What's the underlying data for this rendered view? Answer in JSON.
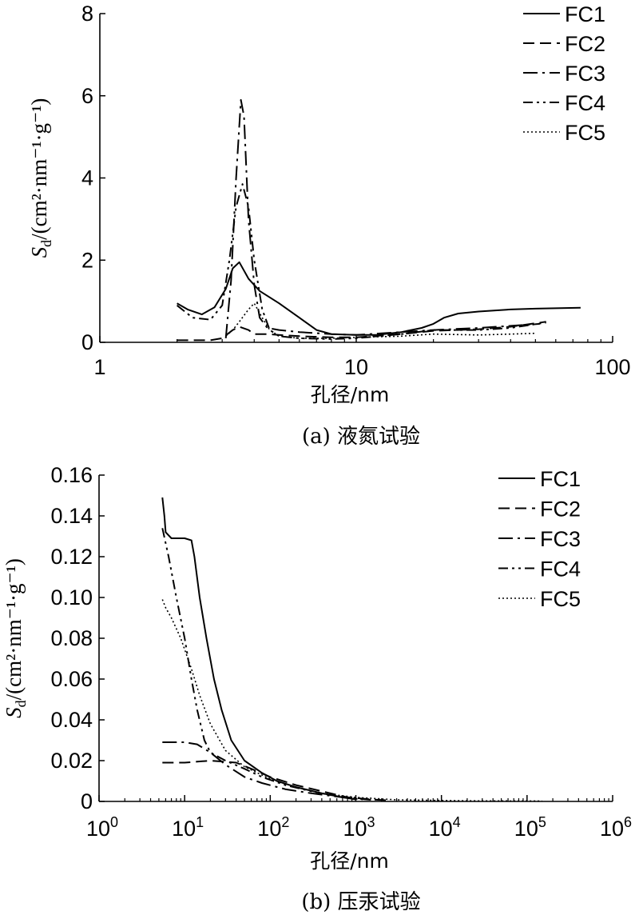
{
  "chart_data": [
    {
      "type": "line",
      "x_scale": "log",
      "xlim": [
        1,
        100
      ],
      "ylim": [
        0,
        8
      ],
      "x_ticks": [
        1,
        10,
        100
      ],
      "x_tick_labels": [
        "1",
        "10",
        "100"
      ],
      "y_ticks": [
        0,
        2,
        4,
        6,
        8
      ],
      "y_tick_labels": [
        "0",
        "2",
        "4",
        "6",
        "8"
      ],
      "ylabel": {
        "base": "S",
        "sub": "d",
        "unit": "/(cm²·nm⁻¹·g⁻¹)"
      },
      "xlabel": "孔径/nm",
      "caption": "(a)  液氮试验",
      "legend_position": "top-right",
      "series": [
        {
          "name": "FC1",
          "style": "solid",
          "points": [
            [
              2.0,
              0.95
            ],
            [
              2.2,
              0.8
            ],
            [
              2.5,
              0.68
            ],
            [
              2.8,
              0.85
            ],
            [
              3.1,
              1.3
            ],
            [
              3.3,
              1.8
            ],
            [
              3.5,
              1.95
            ],
            [
              3.8,
              1.55
            ],
            [
              4.2,
              1.25
            ],
            [
              5.0,
              0.95
            ],
            [
              6.0,
              0.6
            ],
            [
              7.0,
              0.3
            ],
            [
              8.0,
              0.2
            ],
            [
              10.0,
              0.18
            ],
            [
              12.0,
              0.18
            ],
            [
              15.0,
              0.25
            ],
            [
              18.0,
              0.35
            ],
            [
              20.0,
              0.45
            ],
            [
              22.0,
              0.6
            ],
            [
              25.0,
              0.7
            ],
            [
              30.0,
              0.75
            ],
            [
              40.0,
              0.8
            ],
            [
              50.0,
              0.82
            ],
            [
              75.0,
              0.84
            ]
          ]
        },
        {
          "name": "FC2",
          "style": "dashed",
          "points": [
            [
              2.0,
              0.05
            ],
            [
              2.7,
              0.05
            ],
            [
              3.0,
              0.1
            ],
            [
              3.3,
              0.3
            ],
            [
              3.5,
              0.38
            ],
            [
              3.8,
              0.3
            ],
            [
              4.0,
              0.2
            ],
            [
              4.5,
              0.2
            ],
            [
              5.0,
              0.18
            ],
            [
              6.0,
              0.15
            ],
            [
              8.0,
              0.12
            ],
            [
              10.0,
              0.12
            ],
            [
              15.0,
              0.2
            ],
            [
              20.0,
              0.28
            ],
            [
              30.0,
              0.32
            ],
            [
              40.0,
              0.38
            ],
            [
              55.0,
              0.5
            ]
          ]
        },
        {
          "name": "FC3",
          "style": "dashdot",
          "points": [
            [
              3.1,
              0.1
            ],
            [
              3.25,
              1.5
            ],
            [
              3.4,
              4.0
            ],
            [
              3.55,
              5.9
            ],
            [
              3.65,
              5.5
            ],
            [
              3.8,
              3.0
            ],
            [
              4.0,
              1.4
            ],
            [
              4.2,
              0.6
            ],
            [
              4.5,
              0.35
            ],
            [
              5.0,
              0.3
            ],
            [
              6.0,
              0.25
            ],
            [
              8.0,
              0.2
            ],
            [
              10.0,
              0.18
            ],
            [
              15.0,
              0.25
            ],
            [
              20.0,
              0.3
            ],
            [
              30.0,
              0.35
            ],
            [
              40.0,
              0.4
            ],
            [
              52.0,
              0.45
            ]
          ]
        },
        {
          "name": "FC4",
          "style": "dashdotdot",
          "points": [
            [
              2.0,
              0.9
            ],
            [
              2.3,
              0.6
            ],
            [
              2.7,
              0.55
            ],
            [
              3.0,
              0.9
            ],
            [
              3.2,
              2.0
            ],
            [
              3.4,
              3.3
            ],
            [
              3.6,
              3.85
            ],
            [
              3.8,
              3.3
            ],
            [
              4.0,
              2.0
            ],
            [
              4.3,
              0.8
            ],
            [
              4.6,
              0.3
            ],
            [
              5.0,
              0.15
            ],
            [
              6.0,
              0.1
            ],
            [
              8.0,
              0.08
            ],
            [
              10.0,
              0.1
            ],
            [
              15.0,
              0.2
            ],
            [
              20.0,
              0.3
            ],
            [
              30.0,
              0.3
            ],
            [
              40.0,
              0.35
            ],
            [
              55.0,
              0.48
            ]
          ]
        },
        {
          "name": "FC5",
          "style": "dotted",
          "points": [
            [
              3.1,
              0.15
            ],
            [
              3.3,
              0.3
            ],
            [
              3.5,
              0.5
            ],
            [
              3.8,
              0.8
            ],
            [
              4.0,
              0.95
            ],
            [
              4.3,
              0.6
            ],
            [
              4.6,
              0.3
            ],
            [
              5.0,
              0.15
            ],
            [
              6.0,
              0.1
            ],
            [
              8.0,
              0.1
            ],
            [
              10.0,
              0.12
            ],
            [
              15.0,
              0.15
            ],
            [
              20.0,
              0.2
            ],
            [
              30.0,
              0.18
            ],
            [
              40.0,
              0.2
            ],
            [
              50.0,
              0.22
            ]
          ]
        }
      ]
    },
    {
      "type": "line",
      "x_scale": "log",
      "xlim": [
        1,
        1000000
      ],
      "ylim": [
        0,
        0.16
      ],
      "x_ticks": [
        1,
        10,
        100,
        1000,
        10000,
        100000,
        1000000
      ],
      "x_tick_labels": [
        {
          "b": "10",
          "e": "0"
        },
        {
          "b": "10",
          "e": "1"
        },
        {
          "b": "10",
          "e": "2"
        },
        {
          "b": "10",
          "e": "3"
        },
        {
          "b": "10",
          "e": "4"
        },
        {
          "b": "10",
          "e": "5"
        },
        {
          "b": "10",
          "e": "6"
        }
      ],
      "y_ticks": [
        0,
        0.02,
        0.04,
        0.06,
        0.08,
        0.1,
        0.12,
        0.14,
        0.16
      ],
      "y_tick_labels": [
        "0",
        "0.02",
        "0.04",
        "0.06",
        "0.08",
        "0.10",
        "0.12",
        "0.14",
        "0.16"
      ],
      "ylabel": {
        "base": "S",
        "sub": "d",
        "unit": "/(cm²·nm⁻¹·g⁻¹)"
      },
      "xlabel": "孔径/nm",
      "caption": "(b)  压汞试验",
      "legend_position": "top-right",
      "series": [
        {
          "name": "FC1",
          "style": "solid",
          "points": [
            [
              5.5,
              0.149
            ],
            [
              5.8,
              0.14
            ],
            [
              6.0,
              0.132
            ],
            [
              7.0,
              0.129
            ],
            [
              10.0,
              0.129
            ],
            [
              12.0,
              0.128
            ],
            [
              13.0,
              0.12
            ],
            [
              15.0,
              0.1
            ],
            [
              18.0,
              0.08
            ],
            [
              22.0,
              0.06
            ],
            [
              27.0,
              0.045
            ],
            [
              35.0,
              0.03
            ],
            [
              50.0,
              0.02
            ],
            [
              80.0,
              0.014
            ],
            [
              120.0,
              0.01
            ],
            [
              200.0,
              0.007
            ],
            [
              400.0,
              0.004
            ],
            [
              700.0,
              0.002
            ],
            [
              1000.0,
              0.001
            ]
          ]
        },
        {
          "name": "FC2",
          "style": "dashed",
          "points": [
            [
              5.5,
              0.019
            ],
            [
              10.0,
              0.019
            ],
            [
              20.0,
              0.02
            ],
            [
              40.0,
              0.019
            ],
            [
              60.0,
              0.016
            ],
            [
              100.0,
              0.012
            ],
            [
              200.0,
              0.008
            ],
            [
              400.0,
              0.005
            ],
            [
              800.0,
              0.002
            ],
            [
              1500.0,
              0.001
            ],
            [
              2500.0,
              0.0005
            ]
          ]
        },
        {
          "name": "FC3",
          "style": "dashdot",
          "points": [
            [
              5.5,
              0.029
            ],
            [
              10.0,
              0.029
            ],
            [
              14.0,
              0.028
            ],
            [
              20.0,
              0.024
            ],
            [
              30.0,
              0.018
            ],
            [
              50.0,
              0.012
            ],
            [
              80.0,
              0.009
            ],
            [
              150.0,
              0.006
            ],
            [
              300.0,
              0.004
            ],
            [
              700.0,
              0.002
            ],
            [
              1500.0,
              0.0008
            ]
          ]
        },
        {
          "name": "FC4",
          "style": "dashdotdot",
          "points": [
            [
              5.5,
              0.134
            ],
            [
              6.5,
              0.12
            ],
            [
              8.0,
              0.1
            ],
            [
              10.0,
              0.08
            ],
            [
              12.0,
              0.06
            ],
            [
              14.0,
              0.045
            ],
            [
              17.0,
              0.03
            ],
            [
              20.0,
              0.024
            ],
            [
              30.0,
              0.02
            ],
            [
              50.0,
              0.016
            ],
            [
              80.0,
              0.012
            ],
            [
              150.0,
              0.008
            ],
            [
              300.0,
              0.005
            ],
            [
              700.0,
              0.002
            ],
            [
              1200.0,
              0.001
            ]
          ]
        },
        {
          "name": "FC5",
          "style": "dotted",
          "points": [
            [
              5.5,
              0.099
            ],
            [
              6.0,
              0.095
            ],
            [
              7.0,
              0.09
            ],
            [
              9.0,
              0.08
            ],
            [
              12.0,
              0.065
            ],
            [
              15.0,
              0.052
            ],
            [
              20.0,
              0.038
            ],
            [
              30.0,
              0.025
            ],
            [
              50.0,
              0.017
            ],
            [
              100.0,
              0.011
            ],
            [
              200.0,
              0.007
            ],
            [
              400.0,
              0.004
            ],
            [
              1000.0,
              0.002
            ],
            [
              3000.0,
              0.0008
            ],
            [
              20000.0,
              0.0003
            ],
            [
              150000.0,
              0.0002
            ]
          ]
        }
      ]
    }
  ]
}
